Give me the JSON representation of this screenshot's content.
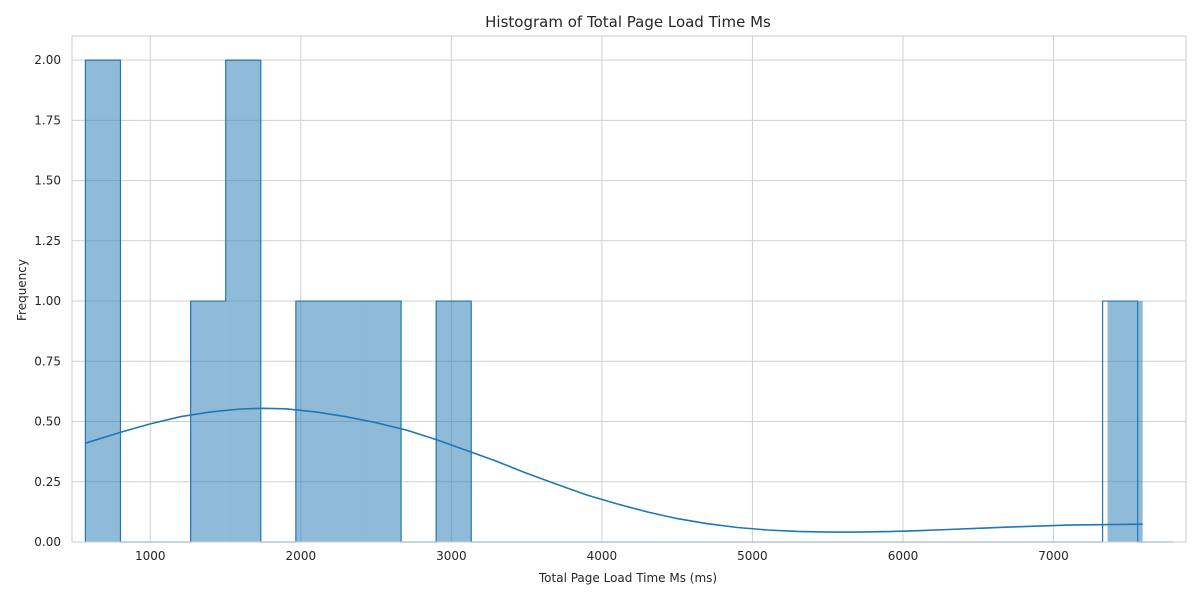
{
  "chart_data": {
    "type": "bar",
    "title": "Histogram of Total Page Load Time Ms",
    "xlabel": "Total Page Load Time Ms (ms)",
    "ylabel": "Frequency",
    "xlim": [
      480,
      7880
    ],
    "ylim": [
      0,
      2.1
    ],
    "x_ticks": [
      1000,
      2000,
      3000,
      4000,
      5000,
      6000,
      7000
    ],
    "x_tick_labels": [
      "1000",
      "2000",
      "3000",
      "4000",
      "5000",
      "6000",
      "7000"
    ],
    "y_ticks": [
      0,
      0.25,
      0.5,
      0.75,
      1.0,
      1.25,
      1.5,
      1.75,
      2.0
    ],
    "y_tick_labels": [
      "0.00",
      "0.25",
      "0.50",
      "0.75",
      "1.00",
      "1.25",
      "1.50",
      "1.75",
      "2.00"
    ],
    "grid": true,
    "bin_width": 233,
    "bins": [
      {
        "start": 569,
        "end": 802,
        "count": 2
      },
      {
        "start": 1268,
        "end": 1501,
        "count": 1
      },
      {
        "start": 1501,
        "end": 1734,
        "count": 2
      },
      {
        "start": 1967,
        "end": 2200,
        "count": 1
      },
      {
        "start": 2200,
        "end": 2433,
        "count": 1
      },
      {
        "start": 2433,
        "end": 2666,
        "count": 1
      },
      {
        "start": 2899,
        "end": 3132,
        "count": 1
      },
      {
        "start": 7359,
        "end": 7592,
        "count": 1
      }
    ],
    "kde": {
      "x": [
        569,
        800,
        1000,
        1200,
        1400,
        1600,
        1750,
        1900,
        2100,
        2300,
        2500,
        2700,
        2900,
        3100,
        3300,
        3500,
        3700,
        3900,
        4100,
        4300,
        4500,
        4700,
        4900,
        5100,
        5300,
        5500,
        5700,
        5900,
        6100,
        6300,
        6500,
        6700,
        6900,
        7100,
        7300,
        7592
      ],
      "y": [
        0.41,
        0.455,
        0.49,
        0.52,
        0.54,
        0.552,
        0.555,
        0.553,
        0.54,
        0.52,
        0.495,
        0.465,
        0.425,
        0.38,
        0.335,
        0.285,
        0.24,
        0.195,
        0.158,
        0.125,
        0.097,
        0.076,
        0.06,
        0.05,
        0.044,
        0.041,
        0.041,
        0.043,
        0.047,
        0.052,
        0.057,
        0.062,
        0.066,
        0.07,
        0.072,
        0.074
      ]
    },
    "colors": {
      "bar_fill": "#1f77b4",
      "bar_fill_opacity": 0.5,
      "bar_edge": "#1f77b4",
      "kde_line": "#1f77b4",
      "grid": "#d0d0d0",
      "spine": "#cccccc"
    }
  }
}
